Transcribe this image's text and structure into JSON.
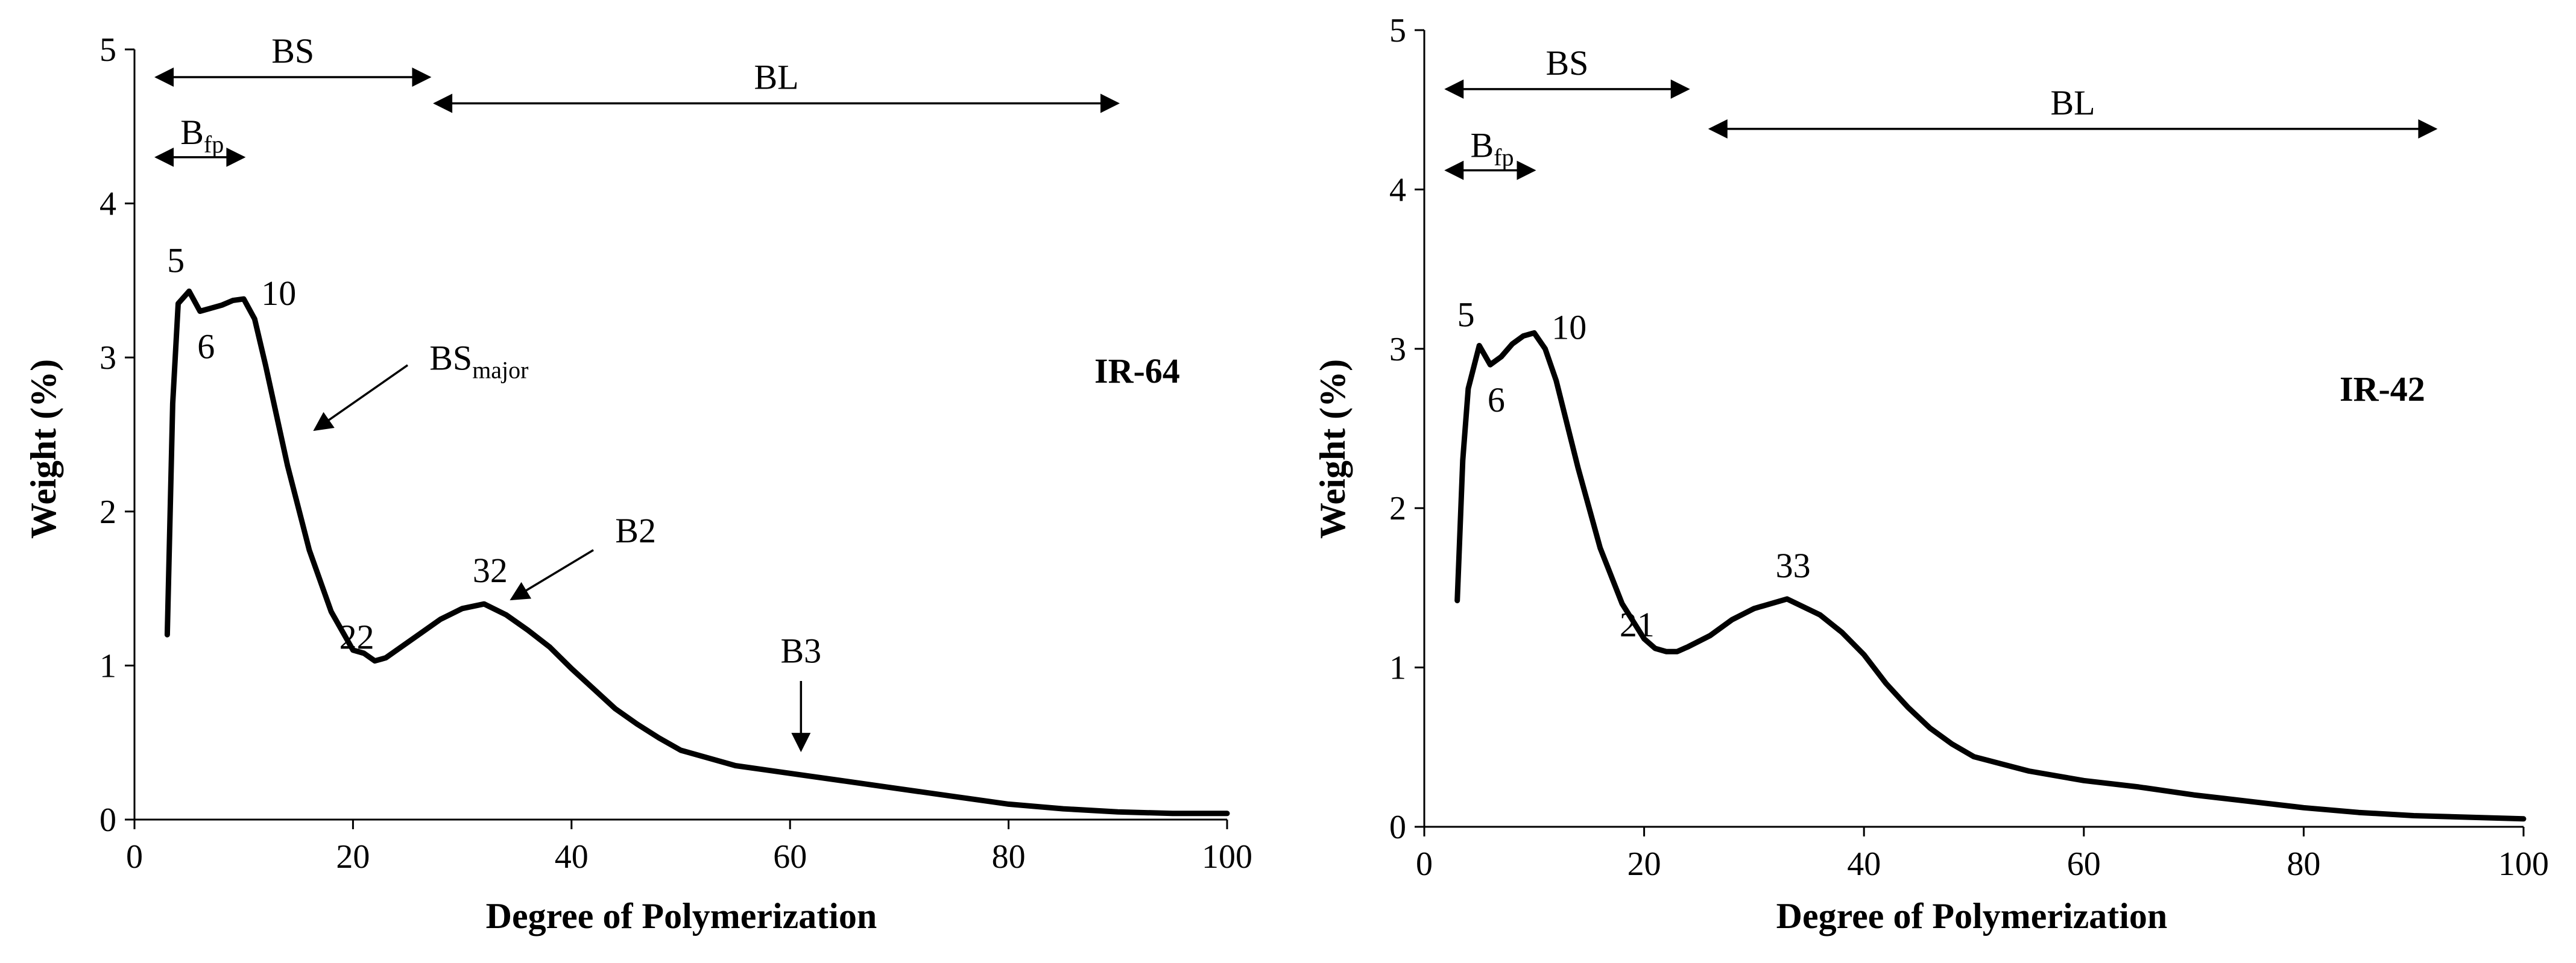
{
  "chart_data": [
    {
      "type": "line",
      "variety_label": "IR-64",
      "xlabel": "Degree of Polymerization",
      "ylabel": "Weight (%)",
      "xlim": [
        0,
        100
      ],
      "ylim": [
        0,
        5
      ],
      "xticks": [
        0,
        20,
        40,
        60,
        80,
        100
      ],
      "yticks": [
        0,
        1,
        2,
        3,
        4,
        5
      ],
      "grid": false,
      "series": [
        {
          "name": "IR-64",
          "x": [
            3,
            3.5,
            4,
            5,
            6,
            7,
            8,
            9,
            10,
            11,
            12,
            14,
            16,
            18,
            20,
            21,
            22,
            23,
            24,
            26,
            28,
            30,
            32,
            34,
            36,
            38,
            40,
            42,
            44,
            46,
            48,
            50,
            55,
            60,
            65,
            70,
            75,
            80,
            85,
            90,
            95,
            100
          ],
          "values": [
            1.2,
            2.7,
            3.35,
            3.43,
            3.3,
            3.32,
            3.34,
            3.37,
            3.38,
            3.25,
            2.95,
            2.3,
            1.75,
            1.35,
            1.1,
            1.08,
            1.03,
            1.05,
            1.1,
            1.2,
            1.3,
            1.37,
            1.4,
            1.33,
            1.23,
            1.12,
            0.98,
            0.85,
            0.72,
            0.62,
            0.53,
            0.45,
            0.35,
            0.3,
            0.25,
            0.2,
            0.15,
            0.1,
            0.07,
            0.05,
            0.04,
            0.04
          ]
        }
      ],
      "peak_labels": [
        {
          "x": 5,
          "y": 3.43,
          "text": "5"
        },
        {
          "x": 6,
          "y": 3.3,
          "text": "6"
        },
        {
          "x": 10,
          "y": 3.38,
          "text": "10"
        },
        {
          "x": 22,
          "y": 1.03,
          "text": "22"
        },
        {
          "x": 32,
          "y": 1.4,
          "text": "32"
        }
      ],
      "range_arrows": [
        {
          "label": "BS",
          "x1": 2,
          "x2": 27,
          "y": 4.82
        },
        {
          "label": "BL",
          "x1": 27.5,
          "x2": 90,
          "y": 4.65
        },
        {
          "label": "B",
          "sub": "fp",
          "x1": 2,
          "x2": 10,
          "y": 4.3
        }
      ],
      "callouts": [
        {
          "label": "BS",
          "sub": "major",
          "text_x": 27,
          "text_y": 2.92,
          "x1": 25,
          "y1": 2.95,
          "x2": 16.5,
          "y2": 2.53
        },
        {
          "label": "B2",
          "text_x": 44,
          "text_y": 1.8,
          "x1": 42,
          "y1": 1.75,
          "x2": 34.5,
          "y2": 1.43
        },
        {
          "label": "B3",
          "text_x": 61,
          "text_y": 1.02,
          "x1": 61,
          "y1": 0.9,
          "x2": 61,
          "y2": 0.45
        }
      ]
    },
    {
      "type": "line",
      "variety_label": "IR-42",
      "xlabel": "Degree of Polymerization",
      "ylabel": "Weight (%)",
      "xlim": [
        0,
        100
      ],
      "ylim": [
        0,
        5
      ],
      "xticks": [
        0,
        20,
        40,
        60,
        80,
        100
      ],
      "yticks": [
        0,
        1,
        2,
        3,
        4,
        5
      ],
      "grid": false,
      "series": [
        {
          "name": "IR-42",
          "x": [
            3,
            3.5,
            4,
            5,
            6,
            7,
            8,
            9,
            10,
            11,
            12,
            14,
            16,
            18,
            20,
            21,
            22,
            23,
            24,
            26,
            28,
            30,
            33,
            36,
            38,
            40,
            42,
            44,
            46,
            48,
            50,
            55,
            60,
            65,
            70,
            75,
            80,
            85,
            90,
            95,
            100
          ],
          "values": [
            1.42,
            2.3,
            2.75,
            3.02,
            2.9,
            2.95,
            3.03,
            3.08,
            3.1,
            3.0,
            2.8,
            2.25,
            1.75,
            1.4,
            1.18,
            1.12,
            1.1,
            1.1,
            1.13,
            1.2,
            1.3,
            1.37,
            1.43,
            1.33,
            1.22,
            1.08,
            0.9,
            0.75,
            0.62,
            0.52,
            0.44,
            0.35,
            0.29,
            0.25,
            0.2,
            0.16,
            0.12,
            0.09,
            0.07,
            0.06,
            0.05
          ]
        }
      ],
      "peak_labels": [
        {
          "x": 5,
          "y": 3.02,
          "text": "5"
        },
        {
          "x": 6,
          "y": 2.9,
          "text": "6"
        },
        {
          "x": 10,
          "y": 3.1,
          "text": "10"
        },
        {
          "x": 21,
          "y": 1.12,
          "text": "21"
        },
        {
          "x": 33,
          "y": 1.43,
          "text": "33"
        }
      ],
      "range_arrows": [
        {
          "label": "BS",
          "x1": 2,
          "x2": 24,
          "y": 4.63
        },
        {
          "label": "BL",
          "x1": 26,
          "x2": 92,
          "y": 4.38
        },
        {
          "label": "B",
          "sub": "fp",
          "x1": 2,
          "x2": 10,
          "y": 4.12
        }
      ],
      "callouts": []
    }
  ]
}
